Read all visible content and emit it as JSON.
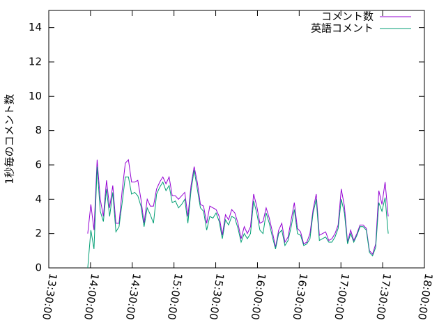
{
  "chart_data": {
    "type": "line",
    "ylabel": "1秒毎のコメント数",
    "x": [
      "13:58:00",
      "14:00:15",
      "14:02:30",
      "14:04:45",
      "14:07:00",
      "14:09:15",
      "14:11:30",
      "14:13:45",
      "14:16:00",
      "14:18:15",
      "14:20:30",
      "14:22:45",
      "14:25:00",
      "14:27:15",
      "14:29:30",
      "14:31:45",
      "14:34:00",
      "14:36:15",
      "14:38:30",
      "14:40:45",
      "14:43:00",
      "14:45:15",
      "14:47:30",
      "14:49:45",
      "14:52:00",
      "14:54:15",
      "14:56:30",
      "14:58:45",
      "15:01:00",
      "15:03:15",
      "15:05:30",
      "15:07:45",
      "15:10:00",
      "15:12:15",
      "15:14:30",
      "15:16:45",
      "15:19:00",
      "15:21:15",
      "15:23:30",
      "15:25:45",
      "15:28:00",
      "15:30:15",
      "15:32:30",
      "15:34:45",
      "15:37:00",
      "15:39:15",
      "15:41:30",
      "15:43:45",
      "15:46:00",
      "15:48:15",
      "15:50:30",
      "15:52:45",
      "15:55:00",
      "15:57:15",
      "15:59:30",
      "16:01:45",
      "16:04:00",
      "16:06:15",
      "16:08:30",
      "16:10:45",
      "16:13:00",
      "16:15:15",
      "16:17:30",
      "16:19:45",
      "16:22:00",
      "16:24:15",
      "16:26:30",
      "16:28:45",
      "16:31:00",
      "16:33:15",
      "16:35:30",
      "16:37:45",
      "16:40:00",
      "16:42:15",
      "16:44:30",
      "16:46:45",
      "16:49:00",
      "16:51:15",
      "16:53:30",
      "16:55:45",
      "16:58:00",
      "17:00:15",
      "17:02:30",
      "17:04:45",
      "17:07:00",
      "17:09:15",
      "17:11:30",
      "17:13:45",
      "17:16:00",
      "17:18:15",
      "17:20:30",
      "17:22:45",
      "17:25:00",
      "17:27:15",
      "17:29:30",
      "17:31:45",
      "17:34:00"
    ],
    "series": [
      {
        "name": "コメント数",
        "color": "#9400d3",
        "values": [
          2.0,
          3.7,
          2.2,
          6.3,
          4.0,
          3.0,
          5.1,
          3.5,
          4.8,
          2.6,
          2.6,
          4.5,
          6.1,
          6.3,
          5.0,
          5.0,
          5.1,
          4.0,
          2.6,
          4.0,
          3.6,
          3.6,
          4.6,
          5.0,
          5.3,
          4.9,
          5.3,
          4.2,
          4.2,
          4.0,
          4.2,
          4.4,
          3.0,
          4.8,
          5.9,
          5.0,
          3.7,
          3.6,
          2.6,
          3.6,
          3.5,
          3.4,
          3.0,
          1.9,
          3.1,
          2.8,
          3.4,
          3.2,
          2.6,
          1.7,
          2.4,
          2.0,
          2.4,
          4.3,
          3.6,
          2.6,
          2.7,
          3.5,
          2.9,
          2.1,
          1.2,
          2.2,
          2.6,
          1.5,
          1.8,
          2.8,
          3.8,
          2.3,
          2.1,
          1.4,
          1.5,
          2.0,
          3.4,
          4.3,
          1.9,
          2.0,
          2.1,
          1.6,
          1.7,
          2.0,
          2.5,
          4.6,
          3.6,
          1.5,
          2.2,
          1.6,
          2.0,
          2.5,
          2.5,
          2.3,
          1.0,
          0.8,
          1.4,
          4.5,
          3.7,
          5.0,
          3.0
        ]
      },
      {
        "name": "英語コメント",
        "color": "#009e73",
        "values": [
          0,
          2.2,
          1.1,
          5.9,
          3.3,
          2.7,
          4.6,
          3.0,
          4.4,
          2.1,
          2.4,
          3.8,
          5.3,
          5.3,
          4.3,
          4.4,
          4.2,
          3.6,
          2.4,
          3.5,
          3.1,
          2.6,
          4.3,
          4.7,
          5.0,
          4.5,
          4.8,
          3.8,
          3.9,
          3.5,
          3.7,
          4.0,
          2.6,
          4.5,
          5.7,
          4.6,
          3.5,
          3.3,
          2.2,
          3.0,
          2.9,
          3.2,
          2.7,
          1.7,
          2.8,
          2.5,
          3.0,
          2.9,
          2.3,
          1.5,
          2.0,
          1.7,
          2.0,
          3.9,
          3.2,
          2.2,
          2.0,
          3.2,
          2.6,
          1.8,
          1.1,
          2.0,
          2.2,
          1.3,
          1.6,
          2.4,
          3.4,
          2.0,
          1.9,
          1.3,
          1.4,
          1.7,
          3.2,
          4.0,
          1.6,
          1.7,
          1.8,
          1.5,
          1.5,
          1.8,
          2.3,
          4.0,
          3.2,
          1.4,
          2.0,
          1.5,
          1.9,
          2.4,
          2.4,
          2.2,
          0.9,
          0.7,
          1.2,
          3.8,
          3.3,
          4.1,
          2.0
        ]
      }
    ],
    "xlim": [
      "13:30:00",
      "18:00:00"
    ],
    "xticks": [
      "13:30:00",
      "14:00:00",
      "14:30:00",
      "15:00:00",
      "15:30:00",
      "16:00:00",
      "16:30:00",
      "17:00:00",
      "17:30:00",
      "18:00:00"
    ],
    "ylim": [
      0,
      15
    ],
    "yticks": [
      0,
      2,
      4,
      6,
      8,
      10,
      12,
      14
    ],
    "legend": "top-right",
    "grid": false
  }
}
